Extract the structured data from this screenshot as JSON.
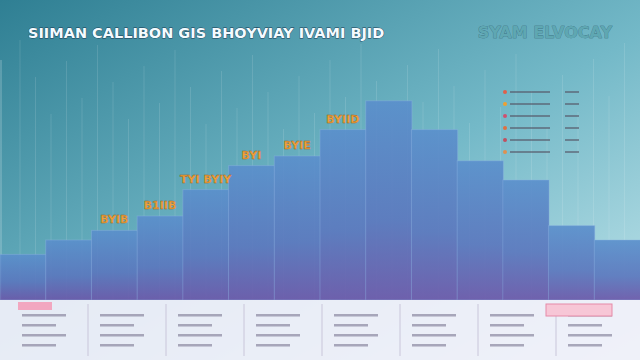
{
  "chart_data": {
    "type": "bar",
    "title": "SIIMAN CALLIBON GIS BHOYVIAY IVAMI BJID",
    "subtitle": "SYAM ELVOCAY",
    "categories": [
      null,
      null,
      null,
      null,
      null,
      null,
      null,
      null,
      null,
      null,
      null,
      null,
      null,
      null
    ],
    "values": [
      19,
      25,
      29,
      35,
      46,
      56,
      60,
      71,
      83,
      71,
      58,
      50,
      31,
      25
    ],
    "ylim": [
      0,
      100
    ],
    "tick_labels": false,
    "grid": false,
    "annotations": [
      {
        "text": "BYIID",
        "x": 7
      },
      {
        "text": "BYIE",
        "x": 6
      },
      {
        "text": "BYI",
        "x": 5
      },
      {
        "text": "TYI BYIY",
        "x": 4
      },
      {
        "text": "B1IIB",
        "x": 3
      },
      {
        "text": "BYIB",
        "x": 2
      }
    ]
  }
}
